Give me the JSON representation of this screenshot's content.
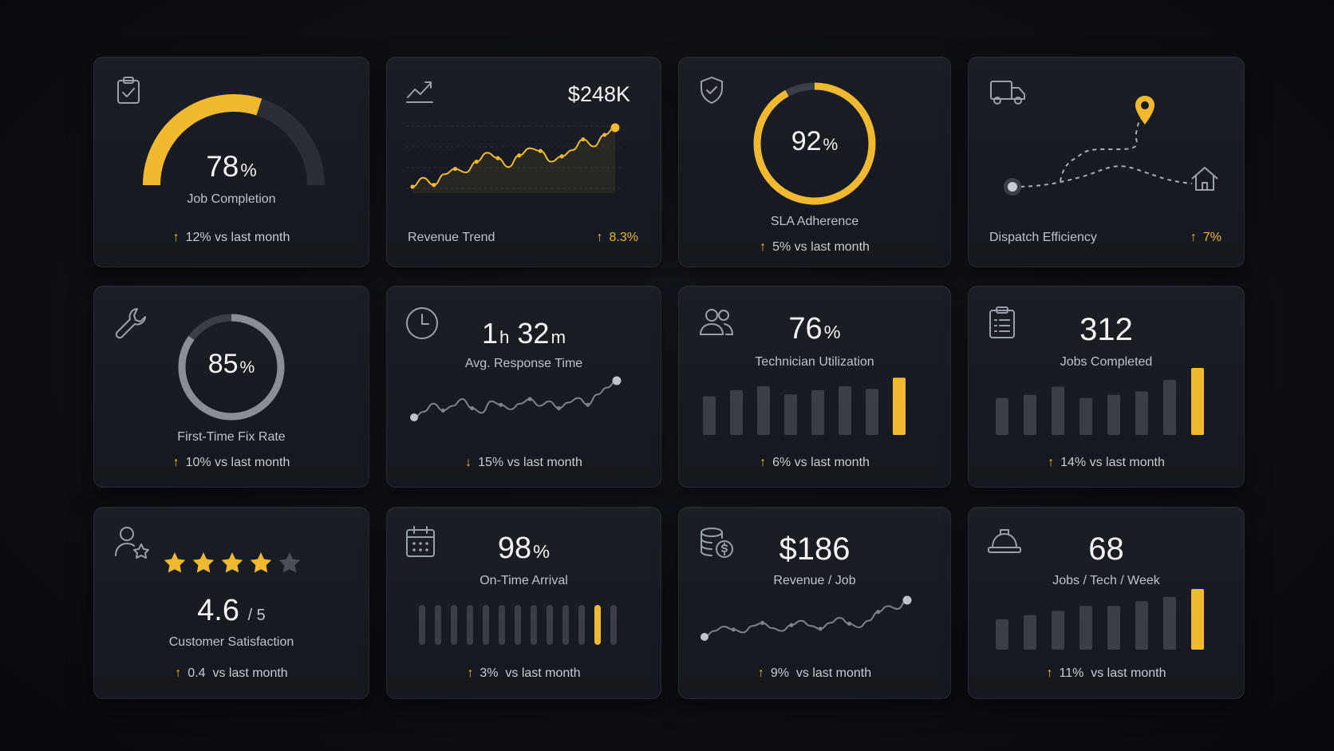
{
  "colors": {
    "accent": "#f0b92f",
    "card": "#181b21",
    "muted": "#3a3e46",
    "text": "#e9eaee"
  },
  "cards": {
    "job_completion": {
      "icon": "clipboard-check-icon",
      "value": "78",
      "unit": "%",
      "label": "Job Completion",
      "trend_dir": "up",
      "trend": "12%",
      "trend_suffix": "vs last month",
      "progress": 0.78
    },
    "revenue_trend": {
      "icon": "chart-line-icon",
      "value": "$248K",
      "label": "Revenue Trend",
      "trend_dir": "up",
      "trend": "8.3%",
      "series": [
        3,
        4,
        3.2,
        4.4,
        5,
        4.6,
        5.8,
        6.8,
        6.2,
        5.2,
        6.5,
        7.3,
        7.0,
        5.8,
        6.4,
        7.1,
        8.3,
        7.5,
        8.8,
        9.6
      ]
    },
    "sla": {
      "icon": "shield-check-icon",
      "value": "92",
      "unit": "%",
      "label": "SLA Adherence",
      "trend_dir": "up",
      "trend": "5%",
      "trend_suffix": "vs last month",
      "progress": 0.92
    },
    "dispatch": {
      "icon": "truck-icon",
      "label": "Dispatch Efficiency",
      "trend_dir": "up",
      "trend": "7%",
      "pin_icon": "map-pin-icon",
      "home_icon": "home-icon"
    },
    "fix_rate": {
      "icon": "wrench-icon",
      "value": "85",
      "unit": "%",
      "label": "First-Time Fix Rate",
      "trend_dir": "up",
      "trend": "10%",
      "trend_suffix": "vs last month",
      "progress": 0.85
    },
    "response": {
      "icon": "clock-icon",
      "value_h": "1",
      "unit_h": "h",
      "value_m": "32",
      "unit_m": "m",
      "label": "Avg. Response Time",
      "trend_dir": "down",
      "trend": "15%",
      "trend_suffix": "vs last month",
      "series": [
        3,
        3.5,
        4.2,
        3.6,
        4,
        4.6,
        3.8,
        3.4,
        4.4,
        4.1,
        3.7,
        4.2,
        4.6,
        4.0,
        4.4,
        3.8,
        4.3,
        4.7,
        4.1,
        5.0,
        5.6,
        6.2
      ]
    },
    "utilization": {
      "icon": "users-icon",
      "value": "76",
      "unit": "%",
      "label": "Technician Utilization",
      "trend_dir": "up",
      "trend": "6%",
      "trend_suffix": "vs last month",
      "bars": [
        0.62,
        0.72,
        0.78,
        0.65,
        0.72,
        0.78,
        0.74,
        0.92
      ]
    },
    "jobs_completed": {
      "icon": "clipboard-list-icon",
      "value": "312",
      "label": "Jobs Completed",
      "trend_dir": "up",
      "trend": "14%",
      "trend_suffix": "vs last month",
      "bars": [
        0.55,
        0.6,
        0.72,
        0.55,
        0.6,
        0.65,
        0.82,
        1.0
      ]
    },
    "csat": {
      "icon": "user-star-icon",
      "rating": 4.6,
      "value": "4.6",
      "scale": "/ 5",
      "label": "Customer Satisfaction",
      "trend_dir": "up",
      "trend": "0.4",
      "trend_suffix": "vs last month",
      "stars_filled": 4,
      "stars_total": 5
    },
    "on_time": {
      "icon": "calendar-icon",
      "value": "98",
      "unit": "%",
      "label": "On-Time Arrival",
      "trend_dir": "up",
      "trend": "3%",
      "trend_suffix": "vs last month",
      "ticks_total": 13,
      "ticks_active_index": 11
    },
    "rev_job": {
      "icon": "coins-dollar-icon",
      "value": "$186",
      "label": "Revenue / Job",
      "trend_dir": "up",
      "trend": "9%",
      "trend_suffix": "vs last month",
      "series": [
        3,
        3.8,
        4.4,
        4.0,
        3.6,
        4.5,
        4.9,
        4.2,
        3.8,
        4.6,
        5.2,
        4.5,
        4.1,
        4.9,
        5.6,
        4.8,
        4.3,
        5.2,
        6.4,
        7.2,
        6.8,
        8.0
      ]
    },
    "jobs_tech": {
      "icon": "hard-hat-icon",
      "value": "68",
      "label": "Jobs / Tech / Week",
      "trend_dir": "up",
      "trend": "11%",
      "trend_suffix": "vs last month",
      "bars": [
        0.5,
        0.57,
        0.64,
        0.72,
        0.72,
        0.8,
        0.87,
        1.0
      ]
    }
  }
}
